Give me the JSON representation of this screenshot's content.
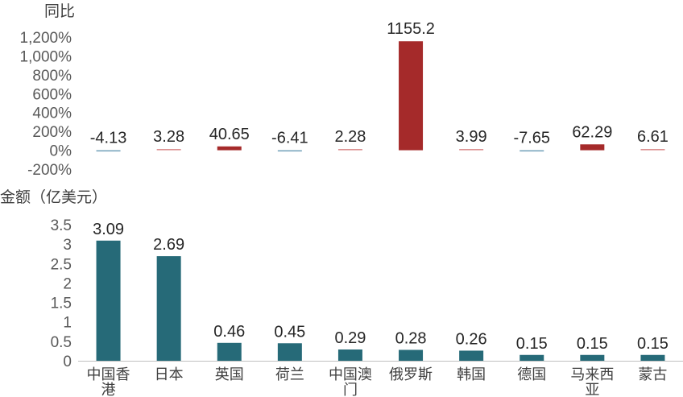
{
  "chart_data": [
    {
      "type": "bar",
      "ylabel": "同比",
      "categories": [
        "中国香港",
        "日本",
        "英国",
        "荷兰",
        "中国澳门",
        "俄罗斯",
        "韩国",
        "德国",
        "马来西亚",
        "蒙古"
      ],
      "values": [
        -4.13,
        3.28,
        40.65,
        -6.41,
        2.28,
        1155.2,
        3.99,
        -7.65,
        62.29,
        6.61
      ],
      "data_labels": [
        "-4.13",
        "3.28",
        "40.65",
        "-6.41",
        "2.28",
        "1155.2",
        "3.99",
        "-7.65",
        "62.29",
        "6.61"
      ],
      "ylim": [
        -200,
        1200
      ],
      "yticks": [
        -200,
        0,
        200,
        400,
        600,
        800,
        1000,
        1200
      ],
      "ytick_labels": [
        "-200%",
        "0%",
        "200%",
        "400%",
        "600%",
        "800%",
        "1,000%",
        "1,200%"
      ],
      "colors": {
        "positive": "#a52a2a",
        "negative": "#2a6f8f",
        "positive_light": "#d98a8a",
        "negative_light": "#6f9fb8"
      },
      "grid": false
    },
    {
      "type": "bar",
      "ylabel": "金额（亿美元）",
      "categories": [
        "中国香港",
        "日本",
        "英国",
        "荷兰",
        "中国澳门",
        "俄罗斯",
        "韩国",
        "德国",
        "马来西亚",
        "蒙古"
      ],
      "category_lines": [
        [
          "中国香",
          "港"
        ],
        [
          "日本"
        ],
        [
          "英国"
        ],
        [
          "荷兰"
        ],
        [
          "中国澳",
          "门"
        ],
        [
          "俄罗斯"
        ],
        [
          "韩国"
        ],
        [
          "德国"
        ],
        [
          "马来西",
          "亚"
        ],
        [
          "蒙古"
        ]
      ],
      "values": [
        3.09,
        2.69,
        0.46,
        0.45,
        0.29,
        0.28,
        0.26,
        0.15,
        0.15,
        0.15
      ],
      "data_labels": [
        "3.09",
        "2.69",
        "0.46",
        "0.45",
        "0.29",
        "0.28",
        "0.26",
        "0.15",
        "0.15",
        "0.15"
      ],
      "ylim": [
        0,
        3.5
      ],
      "yticks": [
        0,
        0.5,
        1,
        1.5,
        2,
        2.5,
        3,
        3.5
      ],
      "ytick_labels": [
        "0",
        "0.5",
        "1",
        "1.5",
        "2",
        "2.5",
        "3",
        "3.5"
      ],
      "colors": {
        "bar": "#266a78",
        "axis": "#bfbfbf"
      },
      "grid": false
    }
  ]
}
